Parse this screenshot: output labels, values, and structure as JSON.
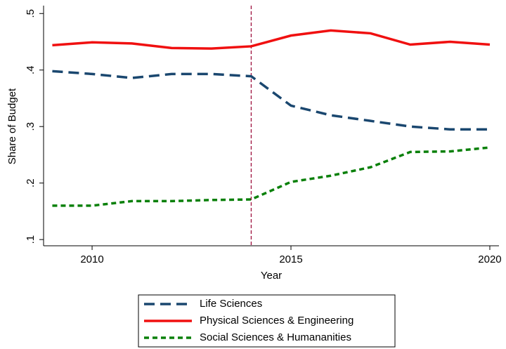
{
  "chart_data": {
    "type": "line",
    "x_label": "Year",
    "y_label": "Share of Budget",
    "x": [
      2009,
      2010,
      2011,
      2012,
      2013,
      2014,
      2015,
      2016,
      2017,
      2018,
      2019,
      2020
    ],
    "series": [
      {
        "name": "Life Sciences",
        "color": "#1a476f",
        "dash": "long",
        "values": [
          0.398,
          0.393,
          0.386,
          0.393,
          0.393,
          0.389,
          0.337,
          0.32,
          0.31,
          0.3,
          0.295,
          0.295
        ]
      },
      {
        "name": "Physical Sciences & Engineering",
        "color": "#f01010",
        "dash": "solid",
        "values": [
          0.444,
          0.449,
          0.447,
          0.439,
          0.438,
          0.442,
          0.461,
          0.47,
          0.465,
          0.445,
          0.45,
          0.445
        ]
      },
      {
        "name": "Social Sciences & Humananities",
        "color": "#0a800a",
        "dash": "short",
        "values": [
          0.16,
          0.16,
          0.168,
          0.168,
          0.17,
          0.171,
          0.202,
          0.213,
          0.228,
          0.255,
          0.256,
          0.263
        ]
      }
    ],
    "vline": {
      "x": 2014,
      "color": "#990033"
    },
    "xlim": [
      2008.78,
      2020.23
    ],
    "ylim": [
      0.089,
      0.514
    ],
    "xticks": [
      2010,
      2015,
      2020
    ],
    "yticks": [
      {
        "value": 0.1,
        "label": ".1"
      },
      {
        "value": 0.2,
        "label": ".2"
      },
      {
        "value": 0.3,
        "label": ".3"
      },
      {
        "value": 0.4,
        "label": ".4"
      },
      {
        "value": 0.5,
        "label": ".5"
      }
    ],
    "legend": "bottom"
  }
}
